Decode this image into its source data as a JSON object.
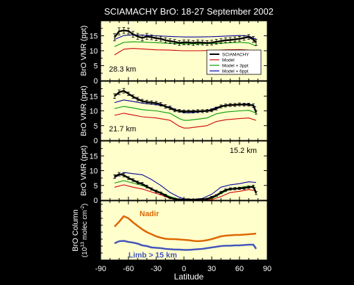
{
  "title": "SCIAMACHY BrO: 18-27 September 2002",
  "xlabel": "Latitude",
  "x_ticks": [
    -90,
    -60,
    -30,
    0,
    30,
    60,
    90
  ],
  "colors": {
    "background": "#000000",
    "panel_fill": "#ffffcc",
    "sciamachy": "#000000",
    "model": "#cc0000",
    "model_3ppt": "#009900",
    "model_6ppt": "#000099",
    "nadir": "#dd6600",
    "limb": "#4455bb"
  },
  "legend": [
    "SCIAMACHY",
    "Model",
    "Model + 3ppt",
    "Model + 6ppt"
  ],
  "chart_data": [
    {
      "type": "line",
      "panel_label": "28.3 km",
      "ylabel": "BrO VMR (ppt)",
      "xlim": [
        -90,
        90
      ],
      "ylim": [
        0,
        20
      ],
      "y_ticks": [
        0,
        5,
        10,
        15
      ],
      "legend_placement": "right",
      "series": [
        {
          "name": "SCIAMACHY",
          "x": [
            -75,
            -70,
            -65,
            -60,
            -55,
            -50,
            -45,
            -40,
            -35,
            -30,
            -25,
            -20,
            -15,
            -10,
            -5,
            0,
            5,
            10,
            15,
            20,
            25,
            30,
            35,
            40,
            45,
            50,
            55,
            60,
            65,
            70,
            75,
            78
          ],
          "y": [
            14.5,
            16.5,
            16.8,
            16.6,
            15.5,
            14.8,
            14.3,
            14.8,
            14.5,
            14.2,
            14.0,
            13.5,
            13.2,
            13.0,
            12.6,
            12.8,
            12.8,
            12.6,
            12.8,
            12.7,
            12.6,
            12.7,
            13.0,
            13.2,
            13.5,
            13.6,
            13.8,
            14.0,
            14.3,
            14.6,
            13.8,
            12.8
          ],
          "err": [
            1.2,
            1.2,
            1.0,
            1.0,
            1.0,
            1.0,
            1.0,
            1.0,
            0.8,
            0.8,
            0.8,
            0.8,
            0.8,
            0.8,
            0.8,
            0.8,
            0.8,
            0.8,
            0.8,
            0.8,
            0.8,
            0.8,
            0.8,
            0.8,
            0.8,
            0.8,
            0.8,
            0.8,
            0.8,
            0.8,
            1.0,
            1.0
          ]
        },
        {
          "name": "Model",
          "x": [
            -75,
            -65,
            -55,
            -45,
            -30,
            -15,
            0,
            15,
            30,
            45,
            60,
            70,
            78
          ],
          "y": [
            8.6,
            10.5,
            10.8,
            10.6,
            10.3,
            10.2,
            10.0,
            10.0,
            10.1,
            10.3,
            10.4,
            10.2,
            9.2
          ]
        },
        {
          "name": "Model + 3ppt",
          "x": [
            -75,
            -65,
            -55,
            -45,
            -30,
            -15,
            0,
            15,
            30,
            45,
            60,
            70,
            78
          ],
          "y": [
            11.4,
            12.8,
            13.0,
            12.9,
            12.7,
            12.5,
            12.3,
            12.3,
            12.4,
            12.6,
            12.8,
            12.6,
            11.6
          ]
        },
        {
          "name": "Model + 6ppt",
          "x": [
            -75,
            -65,
            -55,
            -45,
            -30,
            -15,
            0,
            15,
            30,
            45,
            60,
            70,
            78
          ],
          "y": [
            13.8,
            15.1,
            15.3,
            15.2,
            15.0,
            14.8,
            14.6,
            14.6,
            14.7,
            14.9,
            15.1,
            14.9,
            13.9
          ]
        }
      ]
    },
    {
      "type": "line",
      "panel_label": "21.7 km",
      "ylabel": "BrO VMR (ppt)",
      "xlim": [
        -90,
        90
      ],
      "ylim": [
        0,
        20
      ],
      "y_ticks": [
        0,
        5,
        10,
        15
      ],
      "series": [
        {
          "name": "SCIAMACHY",
          "x": [
            -75,
            -70,
            -65,
            -60,
            -55,
            -50,
            -45,
            -40,
            -35,
            -30,
            -25,
            -20,
            -15,
            -10,
            -5,
            0,
            5,
            10,
            15,
            20,
            25,
            30,
            35,
            40,
            45,
            50,
            55,
            60,
            65,
            70,
            75,
            78
          ],
          "y": [
            15.0,
            16.3,
            16.8,
            15.8,
            14.8,
            14.0,
            13.3,
            13.0,
            12.8,
            12.6,
            12.2,
            11.5,
            11.0,
            10.2,
            10.0,
            9.8,
            9.8,
            9.8,
            9.9,
            9.9,
            10.0,
            10.2,
            10.8,
            11.5,
            11.8,
            12.0,
            12.0,
            12.2,
            12.1,
            12.1,
            11.8,
            9.5
          ],
          "err": [
            0.8,
            0.8,
            0.8,
            0.6,
            0.6,
            0.6,
            0.6,
            0.6,
            0.6,
            0.6,
            0.6,
            0.6,
            0.6,
            0.5,
            0.5,
            0.5,
            0.5,
            0.5,
            0.5,
            0.5,
            0.5,
            0.5,
            0.5,
            0.5,
            0.5,
            0.5,
            0.5,
            0.5,
            0.5,
            0.5,
            0.6,
            0.6
          ]
        },
        {
          "name": "Model",
          "x": [
            -75,
            -65,
            -55,
            -45,
            -30,
            -15,
            -5,
            0,
            5,
            15,
            25,
            35,
            45,
            60,
            70,
            78
          ],
          "y": [
            8.5,
            9.2,
            8.6,
            8.0,
            7.6,
            6.8,
            4.8,
            4.2,
            4.2,
            4.6,
            5.0,
            6.4,
            7.0,
            7.4,
            7.6,
            6.8
          ]
        },
        {
          "name": "Model + 3ppt",
          "x": [
            -75,
            -65,
            -55,
            -45,
            -30,
            -15,
            -5,
            0,
            5,
            15,
            25,
            35,
            45,
            60,
            70,
            78
          ],
          "y": [
            10.8,
            11.5,
            11.0,
            10.4,
            10.0,
            9.2,
            7.4,
            6.8,
            6.8,
            7.2,
            7.6,
            9.0,
            9.6,
            10.0,
            10.2,
            9.3
          ]
        },
        {
          "name": "Model + 6ppt",
          "x": [
            -75,
            -65,
            -55,
            -45,
            -30,
            -15,
            -5,
            0,
            5,
            15,
            25,
            35,
            45,
            60,
            70,
            78
          ],
          "y": [
            12.8,
            13.7,
            13.2,
            12.6,
            12.1,
            11.3,
            9.8,
            9.4,
            9.3,
            9.6,
            10.0,
            11.2,
            11.8,
            12.2,
            12.4,
            11.3
          ]
        }
      ]
    },
    {
      "type": "line",
      "panel_label": "15.2 km",
      "ylabel": "BrO VMR (ppt)",
      "xlim": [
        -90,
        90
      ],
      "ylim": [
        0,
        20
      ],
      "y_ticks": [
        0,
        5,
        10,
        15
      ],
      "series": [
        {
          "name": "SCIAMACHY",
          "x": [
            -75,
            -70,
            -65,
            -60,
            -55,
            -50,
            -45,
            -40,
            -35,
            -30,
            -25,
            -20,
            -15,
            -10,
            -5,
            0,
            5,
            10,
            15,
            20,
            25,
            30,
            35,
            40,
            45,
            50,
            55,
            60,
            65,
            70,
            75,
            78
          ],
          "y": [
            8.0,
            8.8,
            8.5,
            7.5,
            6.8,
            6.0,
            5.5,
            4.6,
            3.8,
            3.0,
            2.4,
            1.6,
            0.8,
            0.4,
            0.2,
            0.2,
            0.2,
            0.1,
            0.2,
            0.3,
            0.4,
            1.0,
            1.6,
            2.6,
            3.4,
            3.8,
            3.9,
            4.0,
            4.1,
            4.4,
            4.6,
            2.4
          ],
          "err": [
            0.6,
            0.6,
            0.6,
            0.5,
            0.5,
            0.5,
            0.5,
            0.5,
            0.4,
            0.4,
            0.4,
            0.4,
            0.3,
            0.3,
            0.3,
            0.3,
            0.3,
            0.3,
            0.3,
            0.3,
            0.3,
            0.3,
            0.3,
            0.4,
            0.4,
            0.4,
            0.4,
            0.4,
            0.4,
            0.4,
            0.5,
            0.5
          ]
        },
        {
          "name": "Model",
          "x": [
            -75,
            -65,
            -55,
            -45,
            -35,
            -25,
            -15,
            -5,
            0,
            10,
            20,
            30,
            40,
            50,
            60,
            70,
            78
          ],
          "y": [
            4.4,
            5.2,
            4.4,
            3.8,
            2.8,
            1.8,
            0.6,
            0.1,
            0.0,
            0.0,
            0.0,
            0.2,
            1.2,
            2.6,
            3.0,
            3.6,
            3.2
          ]
        },
        {
          "name": "Model + 3ppt",
          "x": [
            -75,
            -65,
            -55,
            -45,
            -35,
            -25,
            -15,
            -5,
            0,
            10,
            20,
            30,
            40,
            50,
            60,
            70,
            78
          ],
          "y": [
            5.8,
            6.6,
            5.8,
            5.0,
            3.8,
            2.6,
            1.2,
            0.3,
            0.1,
            0.0,
            0.1,
            0.5,
            2.2,
            3.8,
            4.2,
            4.8,
            4.2
          ]
        },
        {
          "name": "Model + 6ppt",
          "x": [
            -75,
            -65,
            -55,
            -45,
            -35,
            -25,
            -15,
            -5,
            0,
            10,
            20,
            30,
            40,
            50,
            60,
            70,
            78
          ],
          "y": [
            7.6,
            9.4,
            9.0,
            8.6,
            7.0,
            5.0,
            2.6,
            1.0,
            0.5,
            0.3,
            0.6,
            2.0,
            4.4,
            5.2,
            5.6,
            6.2,
            6.0
          ]
        }
      ]
    },
    {
      "type": "line",
      "ylabel": "BrO Column",
      "ylabel_unit": "(10",
      "ylabel_exp": "13",
      "ylabel_unit2": " molec cm",
      "ylabel_exp2": "-2",
      "ylabel_close": ")",
      "xlim": [
        -90,
        90
      ],
      "ylim": [
        0,
        8.5
      ],
      "y_ticks": [],
      "series": [
        {
          "name": "Nadir",
          "label_x": -48,
          "label_y": 6.3,
          "x": [
            -75,
            -70,
            -65,
            -60,
            -55,
            -50,
            -45,
            -40,
            -35,
            -30,
            -25,
            -20,
            -15,
            -10,
            -5,
            0,
            5,
            10,
            15,
            20,
            25,
            30,
            35,
            40,
            45,
            50,
            55,
            60,
            65,
            70,
            75,
            78
          ],
          "y": [
            4.8,
            5.5,
            6.3,
            6.0,
            5.4,
            4.9,
            4.4,
            4.0,
            3.7,
            3.4,
            3.2,
            3.05,
            3.0,
            3.0,
            2.95,
            2.9,
            2.85,
            2.75,
            2.7,
            2.75,
            2.85,
            3.0,
            3.2,
            3.4,
            3.5,
            3.55,
            3.6,
            3.6,
            3.65,
            3.7,
            3.75,
            3.8
          ]
        },
        {
          "name": "Limb > 15 km",
          "label_x": -60,
          "label_y": 0.35,
          "x": [
            -75,
            -70,
            -65,
            -60,
            -55,
            -50,
            -45,
            -40,
            -35,
            -30,
            -25,
            -20,
            -15,
            -10,
            -5,
            0,
            5,
            10,
            15,
            20,
            25,
            30,
            35,
            40,
            45,
            50,
            55,
            60,
            65,
            70,
            75,
            78
          ],
          "y": [
            2.4,
            2.7,
            2.75,
            2.6,
            2.5,
            2.35,
            2.1,
            2.0,
            1.8,
            1.75,
            1.7,
            1.6,
            1.55,
            1.5,
            1.5,
            1.45,
            1.45,
            1.5,
            1.55,
            1.6,
            1.7,
            1.8,
            1.9,
            2.0,
            2.05,
            2.05,
            2.1,
            2.1,
            2.15,
            2.2,
            2.2,
            1.6
          ]
        }
      ]
    }
  ]
}
